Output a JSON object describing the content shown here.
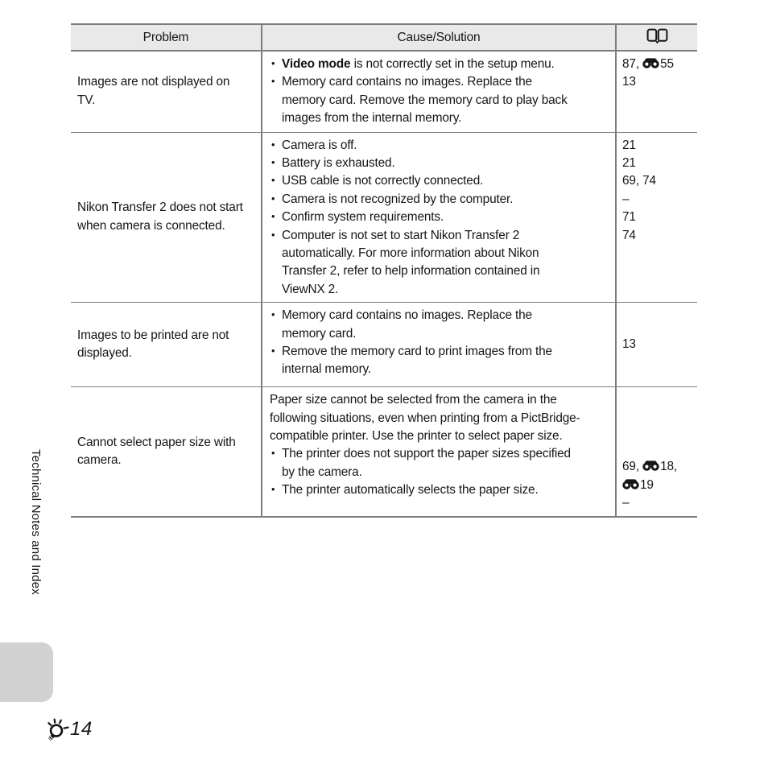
{
  "page": {
    "sidebar_label": "Technical Notes and Index",
    "page_number": "14",
    "page_prefix_icon": "torch-icon"
  },
  "colors": {
    "header_bg": "#e9e9e9",
    "border_gray": "#7d7d7d",
    "tab_gray": "#d2d2d2",
    "text": "#161616"
  },
  "table": {
    "headers": [
      {
        "label": "Problem"
      },
      {
        "label": "Cause/Solution"
      },
      {
        "icon": "book-icon"
      }
    ],
    "rows": [
      {
        "problem": "Images are not displayed on TV.",
        "cause_items": [
          {
            "type": "bullet",
            "nowrap": true,
            "segments": [
              {
                "text": "Video mode",
                "bold": true
              },
              {
                "text": " is not correctly set in the setup menu."
              }
            ]
          },
          {
            "type": "bullet",
            "segments": [
              {
                "text": "Memory card contains no images. Replace the memory card. Remove the memory card to play back images from the internal memory."
              }
            ]
          }
        ],
        "refs_align": "top",
        "refs": [
          {
            "segments": [
              {
                "text": "87, "
              },
              {
                "icon": "e-ref-icon"
              },
              {
                "text": "55"
              }
            ]
          },
          {
            "segments": [
              {
                "text": "13"
              }
            ]
          }
        ]
      },
      {
        "problem": "Nikon Transfer 2 does not start when camera is connected.",
        "cause_items": [
          {
            "type": "bullet",
            "segments": [
              {
                "text": "Camera is off."
              }
            ]
          },
          {
            "type": "bullet",
            "segments": [
              {
                "text": "Battery is exhausted."
              }
            ]
          },
          {
            "type": "bullet",
            "segments": [
              {
                "text": "USB cable is not correctly connected."
              }
            ]
          },
          {
            "type": "bullet",
            "segments": [
              {
                "text": "Camera is not recognized by the computer."
              }
            ]
          },
          {
            "type": "bullet",
            "segments": [
              {
                "text": "Confirm system requirements."
              }
            ]
          },
          {
            "type": "bullet",
            "segments": [
              {
                "text": "Computer is not set to start Nikon Transfer 2 automatically. For more information about Nikon Transfer 2, refer to help information contained in ViewNX 2."
              }
            ]
          }
        ],
        "refs_align": "top",
        "refs": [
          {
            "segments": [
              {
                "text": "21"
              }
            ]
          },
          {
            "segments": [
              {
                "text": "21"
              }
            ]
          },
          {
            "segments": [
              {
                "text": "69, 74"
              }
            ]
          },
          {
            "segments": [
              {
                "text": "–"
              }
            ]
          },
          {
            "segments": [
              {
                "text": "71"
              }
            ]
          },
          {
            "segments": [
              {
                "text": "74"
              }
            ]
          }
        ]
      },
      {
        "problem": "Images to be printed are not displayed.",
        "cause_items": [
          {
            "type": "bullet",
            "segments": [
              {
                "text": "Memory card contains no images. Replace the memory card."
              }
            ]
          },
          {
            "type": "bullet",
            "segments": [
              {
                "text": "Remove the memory card to print images from the internal memory."
              }
            ]
          }
        ],
        "refs_align": "middle",
        "refs": [
          {
            "segments": [
              {
                "text": "13"
              }
            ]
          }
        ]
      },
      {
        "problem": "Cannot select paper size with camera.",
        "cause_items": [
          {
            "type": "paragraph",
            "segments": [
              {
                "text": "Paper size cannot be selected from the camera in the following situations, even when printing from a PictBridge-compatible printer. Use the printer to select paper size."
              }
            ]
          },
          {
            "type": "bullet",
            "segments": [
              {
                "text": "The printer does not support the paper sizes specified by the camera."
              }
            ]
          },
          {
            "type": "bullet",
            "segments": [
              {
                "text": "The printer automatically selects the paper size."
              }
            ]
          }
        ],
        "refs_align": "bottom",
        "refs": [
          {
            "segments": [
              {
                "text": "69, "
              },
              {
                "icon": "e-ref-icon"
              },
              {
                "text": "18,"
              }
            ]
          },
          {
            "segments": [
              {
                "icon": "e-ref-icon"
              },
              {
                "text": "19"
              }
            ]
          },
          {
            "segments": [
              {
                "text": "–"
              }
            ]
          }
        ]
      }
    ]
  }
}
